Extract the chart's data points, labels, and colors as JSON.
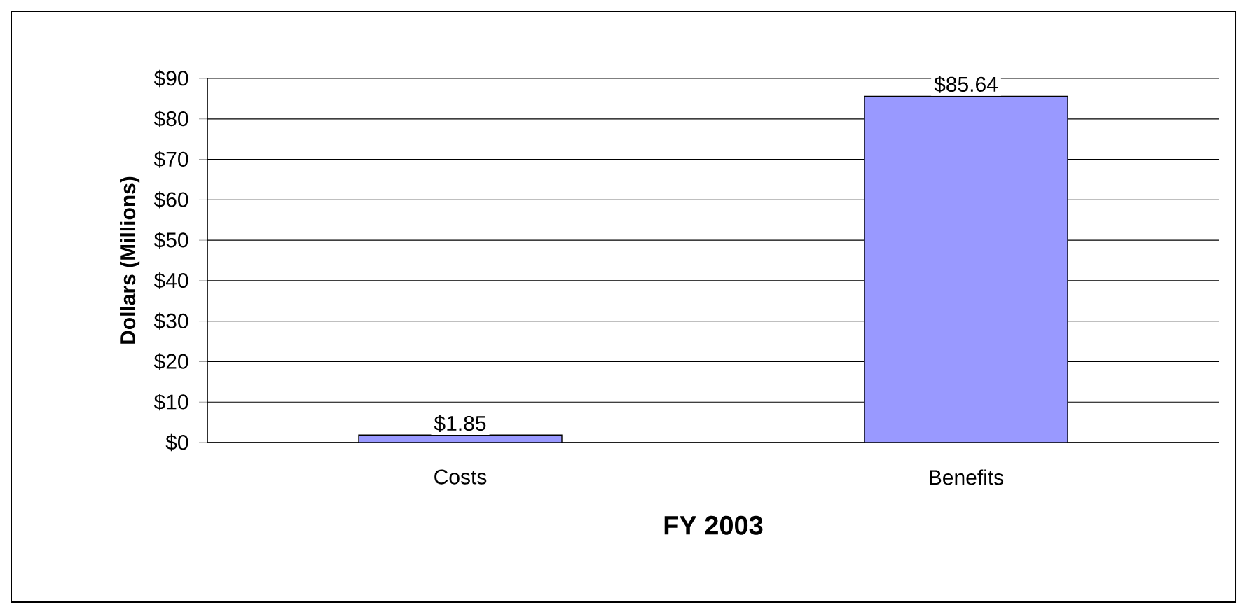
{
  "chart_data": {
    "type": "bar",
    "xlabel": "FY 2003",
    "ylabel": "Dollars (Millions)",
    "categories": [
      "Costs",
      "Benefits"
    ],
    "values": [
      1.85,
      85.64
    ],
    "color": "#9999ff",
    "value_labels": [
      "$1.85",
      "$85.64"
    ],
    "ylim": [
      0,
      90
    ],
    "yticks": [
      {
        "value": 0,
        "label": "$0"
      },
      {
        "value": 10,
        "label": "$10"
      },
      {
        "value": 20,
        "label": "$20"
      },
      {
        "value": 30,
        "label": "$30"
      },
      {
        "value": 40,
        "label": "$40"
      },
      {
        "value": 50,
        "label": "$50"
      },
      {
        "value": 60,
        "label": "$60"
      },
      {
        "value": 70,
        "label": "$70"
      },
      {
        "value": 80,
        "label": "$80"
      },
      {
        "value": 90,
        "label": "$90"
      }
    ],
    "grid": "y"
  }
}
